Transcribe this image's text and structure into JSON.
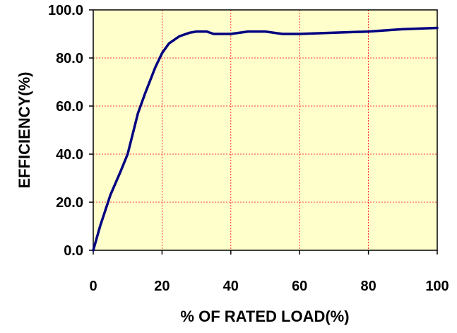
{
  "chart_data": {
    "type": "line",
    "xlabel": "% OF RATED LOAD(%)",
    "ylabel": "EFFICIENCY(%)",
    "xlim": [
      0,
      100
    ],
    "ylim": [
      0,
      100
    ],
    "grid": true,
    "x_ticks": [
      {
        "value": 0,
        "label": "0"
      },
      {
        "value": 20,
        "label": "20"
      },
      {
        "value": 40,
        "label": "40"
      },
      {
        "value": 60,
        "label": "60"
      },
      {
        "value": 80,
        "label": "80"
      },
      {
        "value": 100,
        "label": "100"
      }
    ],
    "y_ticks": [
      {
        "value": 0,
        "label": "0.0"
      },
      {
        "value": 20,
        "label": "20.0"
      },
      {
        "value": 40,
        "label": "40.0"
      },
      {
        "value": 60,
        "label": "60.0"
      },
      {
        "value": 80,
        "label": "80.0"
      },
      {
        "value": 100,
        "label": "100.0"
      }
    ],
    "series": [
      {
        "color": "#000080",
        "x": [
          0,
          2,
          5,
          8,
          10,
          13,
          15,
          18,
          20,
          22,
          25,
          28,
          30,
          33,
          35,
          40,
          45,
          50,
          55,
          60,
          70,
          80,
          90,
          100
        ],
        "y": [
          0,
          10,
          23,
          33,
          40,
          57,
          65,
          76,
          82,
          86,
          89,
          90.5,
          91,
          91,
          90,
          90,
          91,
          91,
          90,
          90,
          90.5,
          91,
          92,
          92.5
        ]
      }
    ],
    "colors": {
      "plot_background": "#ffffcc",
      "grid": "#ff0000",
      "axis": "#000000"
    }
  }
}
